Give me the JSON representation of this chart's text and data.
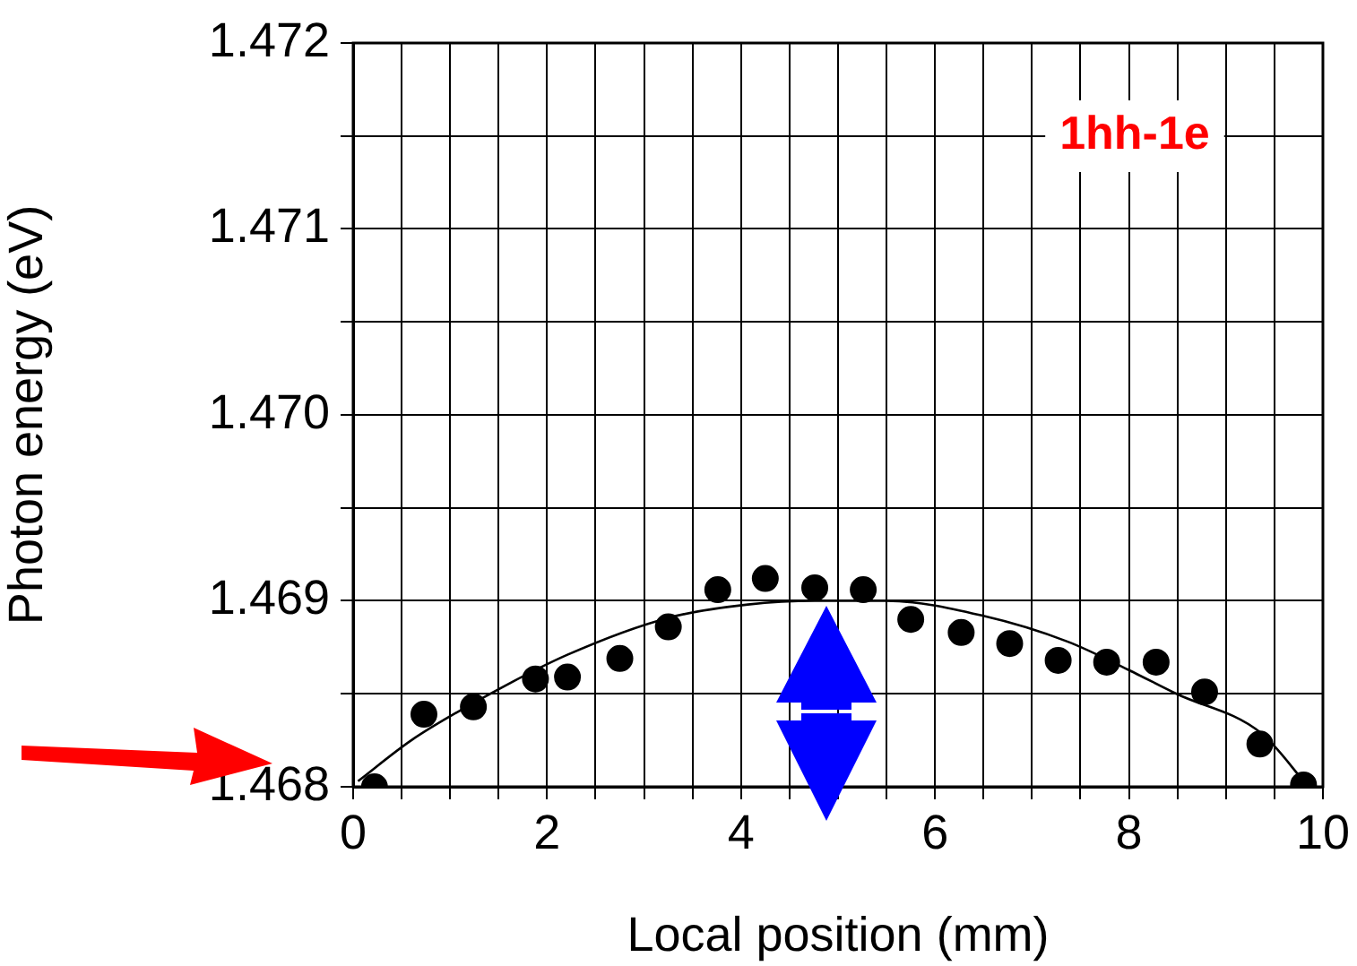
{
  "chart_data": {
    "type": "scatter",
    "xlabel": "Local position (mm)",
    "ylabel": "Photon energy (eV)",
    "annotations": [
      "1hh-1e"
    ],
    "xlim": [
      0,
      10
    ],
    "ylim": [
      1.468,
      1.472
    ],
    "xticks": [
      0,
      {
        "value": 0.5,
        "label": null
      },
      {
        "value": 1,
        "label": null
      },
      {
        "value": 1.5,
        "label": null
      },
      2,
      {
        "value": 2.5,
        "label": null
      },
      {
        "value": 3,
        "label": null
      },
      {
        "value": 3.5,
        "label": null
      },
      4,
      {
        "value": 4.5,
        "label": null
      },
      {
        "value": 5,
        "label": null
      },
      {
        "value": 5.5,
        "label": null
      },
      6,
      {
        "value": 6.5,
        "label": null
      },
      {
        "value": 7,
        "label": null
      },
      {
        "value": 7.5,
        "label": null
      },
      8,
      {
        "value": 8.5,
        "label": null
      },
      {
        "value": 9,
        "label": null
      },
      {
        "value": 9.5,
        "label": null
      },
      10
    ],
    "yticks": [
      1.468,
      {
        "value": 1.4685,
        "label": null
      },
      1.469,
      {
        "value": 1.4695,
        "label": null
      },
      {
        "value": 1.47,
        "label": "1.470"
      },
      {
        "value": 1.4705,
        "label": null
      },
      1.471,
      {
        "value": 1.4715,
        "label": null
      },
      1.472
    ],
    "grid": true,
    "marker": "circle",
    "series": [
      {
        "type": "scatter",
        "color": "#000000",
        "x": [
          0.22,
          0.73,
          1.24,
          1.88,
          2.21,
          2.75,
          3.25,
          3.76,
          4.25,
          4.76,
          5.26,
          5.75,
          6.27,
          6.77,
          7.27,
          7.77,
          8.28,
          8.78,
          9.35,
          9.8
        ],
        "values": [
          1.468,
          1.46839,
          1.46843,
          1.46858,
          1.46859,
          1.46869,
          1.46886,
          1.46906,
          1.46912,
          1.46907,
          1.46906,
          1.4689,
          1.46883,
          1.46877,
          1.46868,
          1.46867,
          1.46867,
          1.46851,
          1.46823,
          1.46801
        ]
      },
      {
        "type": "line",
        "color": "#000000",
        "marker": "none",
        "x": [
          0.05,
          0.6,
          1.24,
          2.21,
          3.26,
          4.07,
          4.76,
          5.5,
          6.49,
          7.37,
          7.99,
          8.49,
          9.36,
          9.85
        ],
        "values": [
          1.46803,
          1.46825,
          1.46845,
          1.46871,
          1.46891,
          1.46898,
          1.469,
          1.469,
          1.46892,
          1.46878,
          1.46863,
          1.4685,
          1.46829,
          1.468
        ]
      }
    ]
  }
}
